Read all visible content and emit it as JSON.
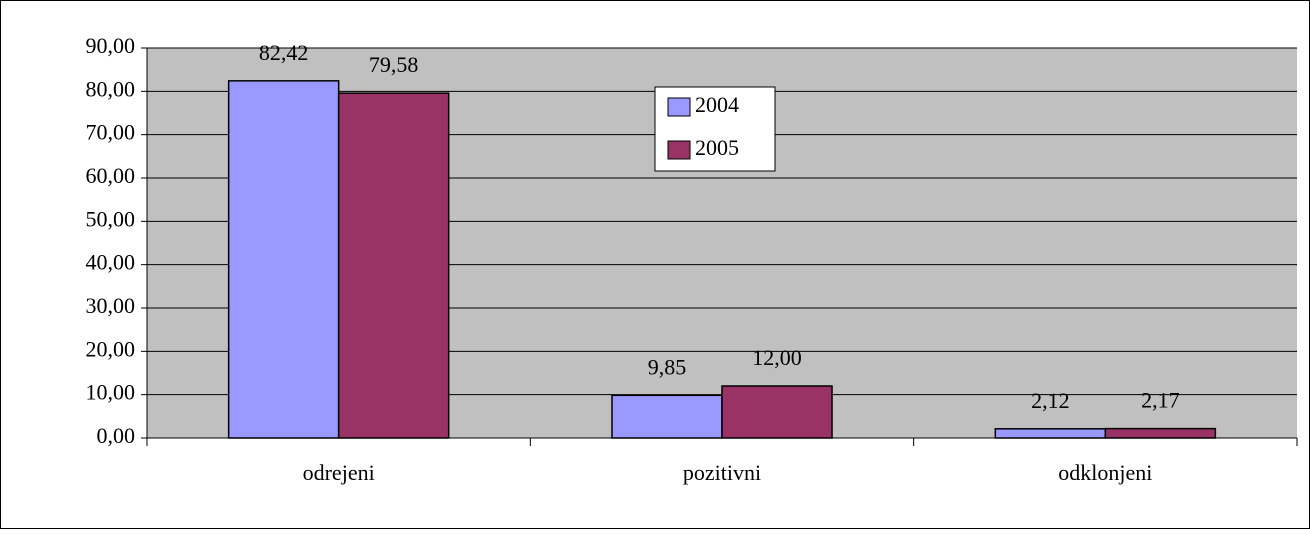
{
  "chart_data": {
    "type": "bar",
    "categories": [
      "odrejeni",
      "pozitivni",
      "odklonjeni"
    ],
    "series": [
      {
        "name": "2004",
        "color": "#9999ff",
        "values": [
          82.42,
          9.85,
          2.12
        ],
        "value_labels": [
          "82,42",
          "9,85",
          "2,12"
        ]
      },
      {
        "name": "2005",
        "color": "#993366",
        "values": [
          79.58,
          12.0,
          2.17
        ],
        "value_labels": [
          "79,58",
          "12,00",
          "2,17"
        ]
      }
    ],
    "ylim": [
      0,
      90
    ],
    "yticks": [
      {
        "value": 0,
        "label": "0,00"
      },
      {
        "value": 10,
        "label": "10,00"
      },
      {
        "value": 20,
        "label": "20,00"
      },
      {
        "value": 30,
        "label": "30,00"
      },
      {
        "value": 40,
        "label": "40,00"
      },
      {
        "value": 50,
        "label": "50,00"
      },
      {
        "value": 60,
        "label": "60,00"
      },
      {
        "value": 70,
        "label": "70,00"
      },
      {
        "value": 80,
        "label": "80,00"
      },
      {
        "value": 90,
        "label": "90,00"
      }
    ],
    "grid": true,
    "plot_background": "#c0c0c0"
  }
}
